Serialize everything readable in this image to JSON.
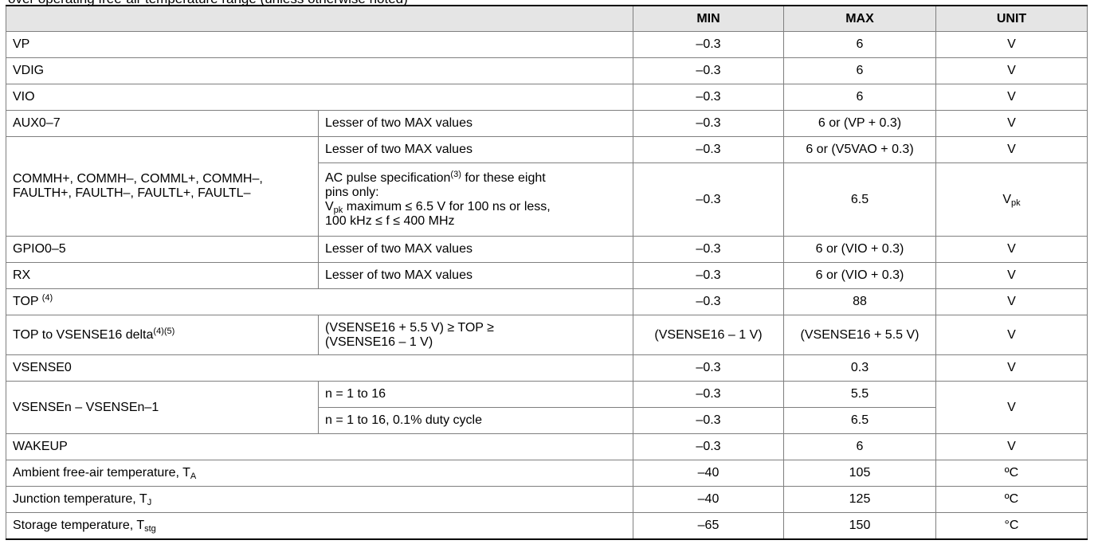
{
  "top_cut_text": "over operating free-air temperature range (unless otherwise noted)",
  "header": {
    "min": "MIN",
    "max": "MAX",
    "unit": "UNIT"
  },
  "rows": {
    "vp": {
      "name": "VP",
      "min": "–0.3",
      "max": "6",
      "unit": "V"
    },
    "vdig": {
      "name": "VDIG",
      "min": "–0.3",
      "max": "6",
      "unit": "V"
    },
    "vio": {
      "name": "VIO",
      "min": "–0.3",
      "max": "6",
      "unit": "V"
    },
    "aux": {
      "name": "AUX0–7",
      "cond": "Lesser of two MAX values",
      "min": "–0.3",
      "max": "6 or (VP + 0.3)",
      "unit": "V"
    },
    "comm": {
      "name_line1": "COMMH+, COMMH–, COMML+, COMMH–,",
      "name_line2": "FAULTH+, FAULTH–, FAULTL+, FAULTL–",
      "cond1": "Lesser of two MAX values",
      "min1": "–0.3",
      "max1": "6 or (V5VAO + 0.3)",
      "unit1": "V",
      "cond2_a": "AC pulse specification",
      "cond2_sup": "(3)",
      "cond2_b": " for these eight",
      "cond2_line2": "pins only:",
      "cond2_v": "V",
      "cond2_vsub": "pk",
      "cond2_line3": " maximum ≤ 6.5 V for 100 ns or less,",
      "cond2_line4": "100 kHz ≤ f ≤ 400 MHz",
      "min2": "–0.3",
      "max2": "6.5",
      "unit2": "V",
      "unit2_sub": "pk"
    },
    "gpio": {
      "name": "GPIO0–5",
      "cond": "Lesser of two MAX values",
      "min": "–0.3",
      "max": "6 or (VIO + 0.3)",
      "unit": "V"
    },
    "rx": {
      "name": "RX",
      "cond": "Lesser of two MAX values",
      "min": "–0.3",
      "max": "6 or (VIO + 0.3)",
      "unit": "V"
    },
    "top": {
      "name": "TOP ",
      "sup": "(4)",
      "min": "–0.3",
      "max": "88",
      "unit": "V"
    },
    "delta": {
      "name": "TOP to VSENSE16 delta",
      "sup": "(4)(5)",
      "cond_line1": "(VSENSE16 + 5.5 V) ≥ TOP ≥",
      "cond_line2": "(VSENSE16 – 1 V)",
      "min": "(VSENSE16 – 1 V)",
      "max": "(VSENSE16 + 5.5 V)",
      "unit": "V"
    },
    "vsense0": {
      "name": "VSENSE0",
      "min": "–0.3",
      "max": "0.3",
      "unit": "V"
    },
    "vsensen": {
      "name": "VSENSEn – VSENSEn–1",
      "cond1": "n = 1 to 16",
      "min1": "–0.3",
      "max1": "5.5",
      "cond2": "n = 1 to 16, 0.1% duty cycle",
      "min2": "–0.3",
      "max2": "6.5",
      "unit": "V"
    },
    "wakeup": {
      "name": "WAKEUP",
      "min": "–0.3",
      "max": "6",
      "unit": "V"
    },
    "ambient": {
      "name": "Ambient free-air temperature, T",
      "sub": "A",
      "min": "–40",
      "max": "105",
      "unit": "ºC"
    },
    "junction": {
      "name": "Junction temperature, T",
      "sub": "J",
      "min": "–40",
      "max": "125",
      "unit": "ºC"
    },
    "storage": {
      "name": "Storage temperature, T",
      "sub": "stg",
      "min": "–65",
      "max": "150",
      "unit": "°C"
    }
  }
}
